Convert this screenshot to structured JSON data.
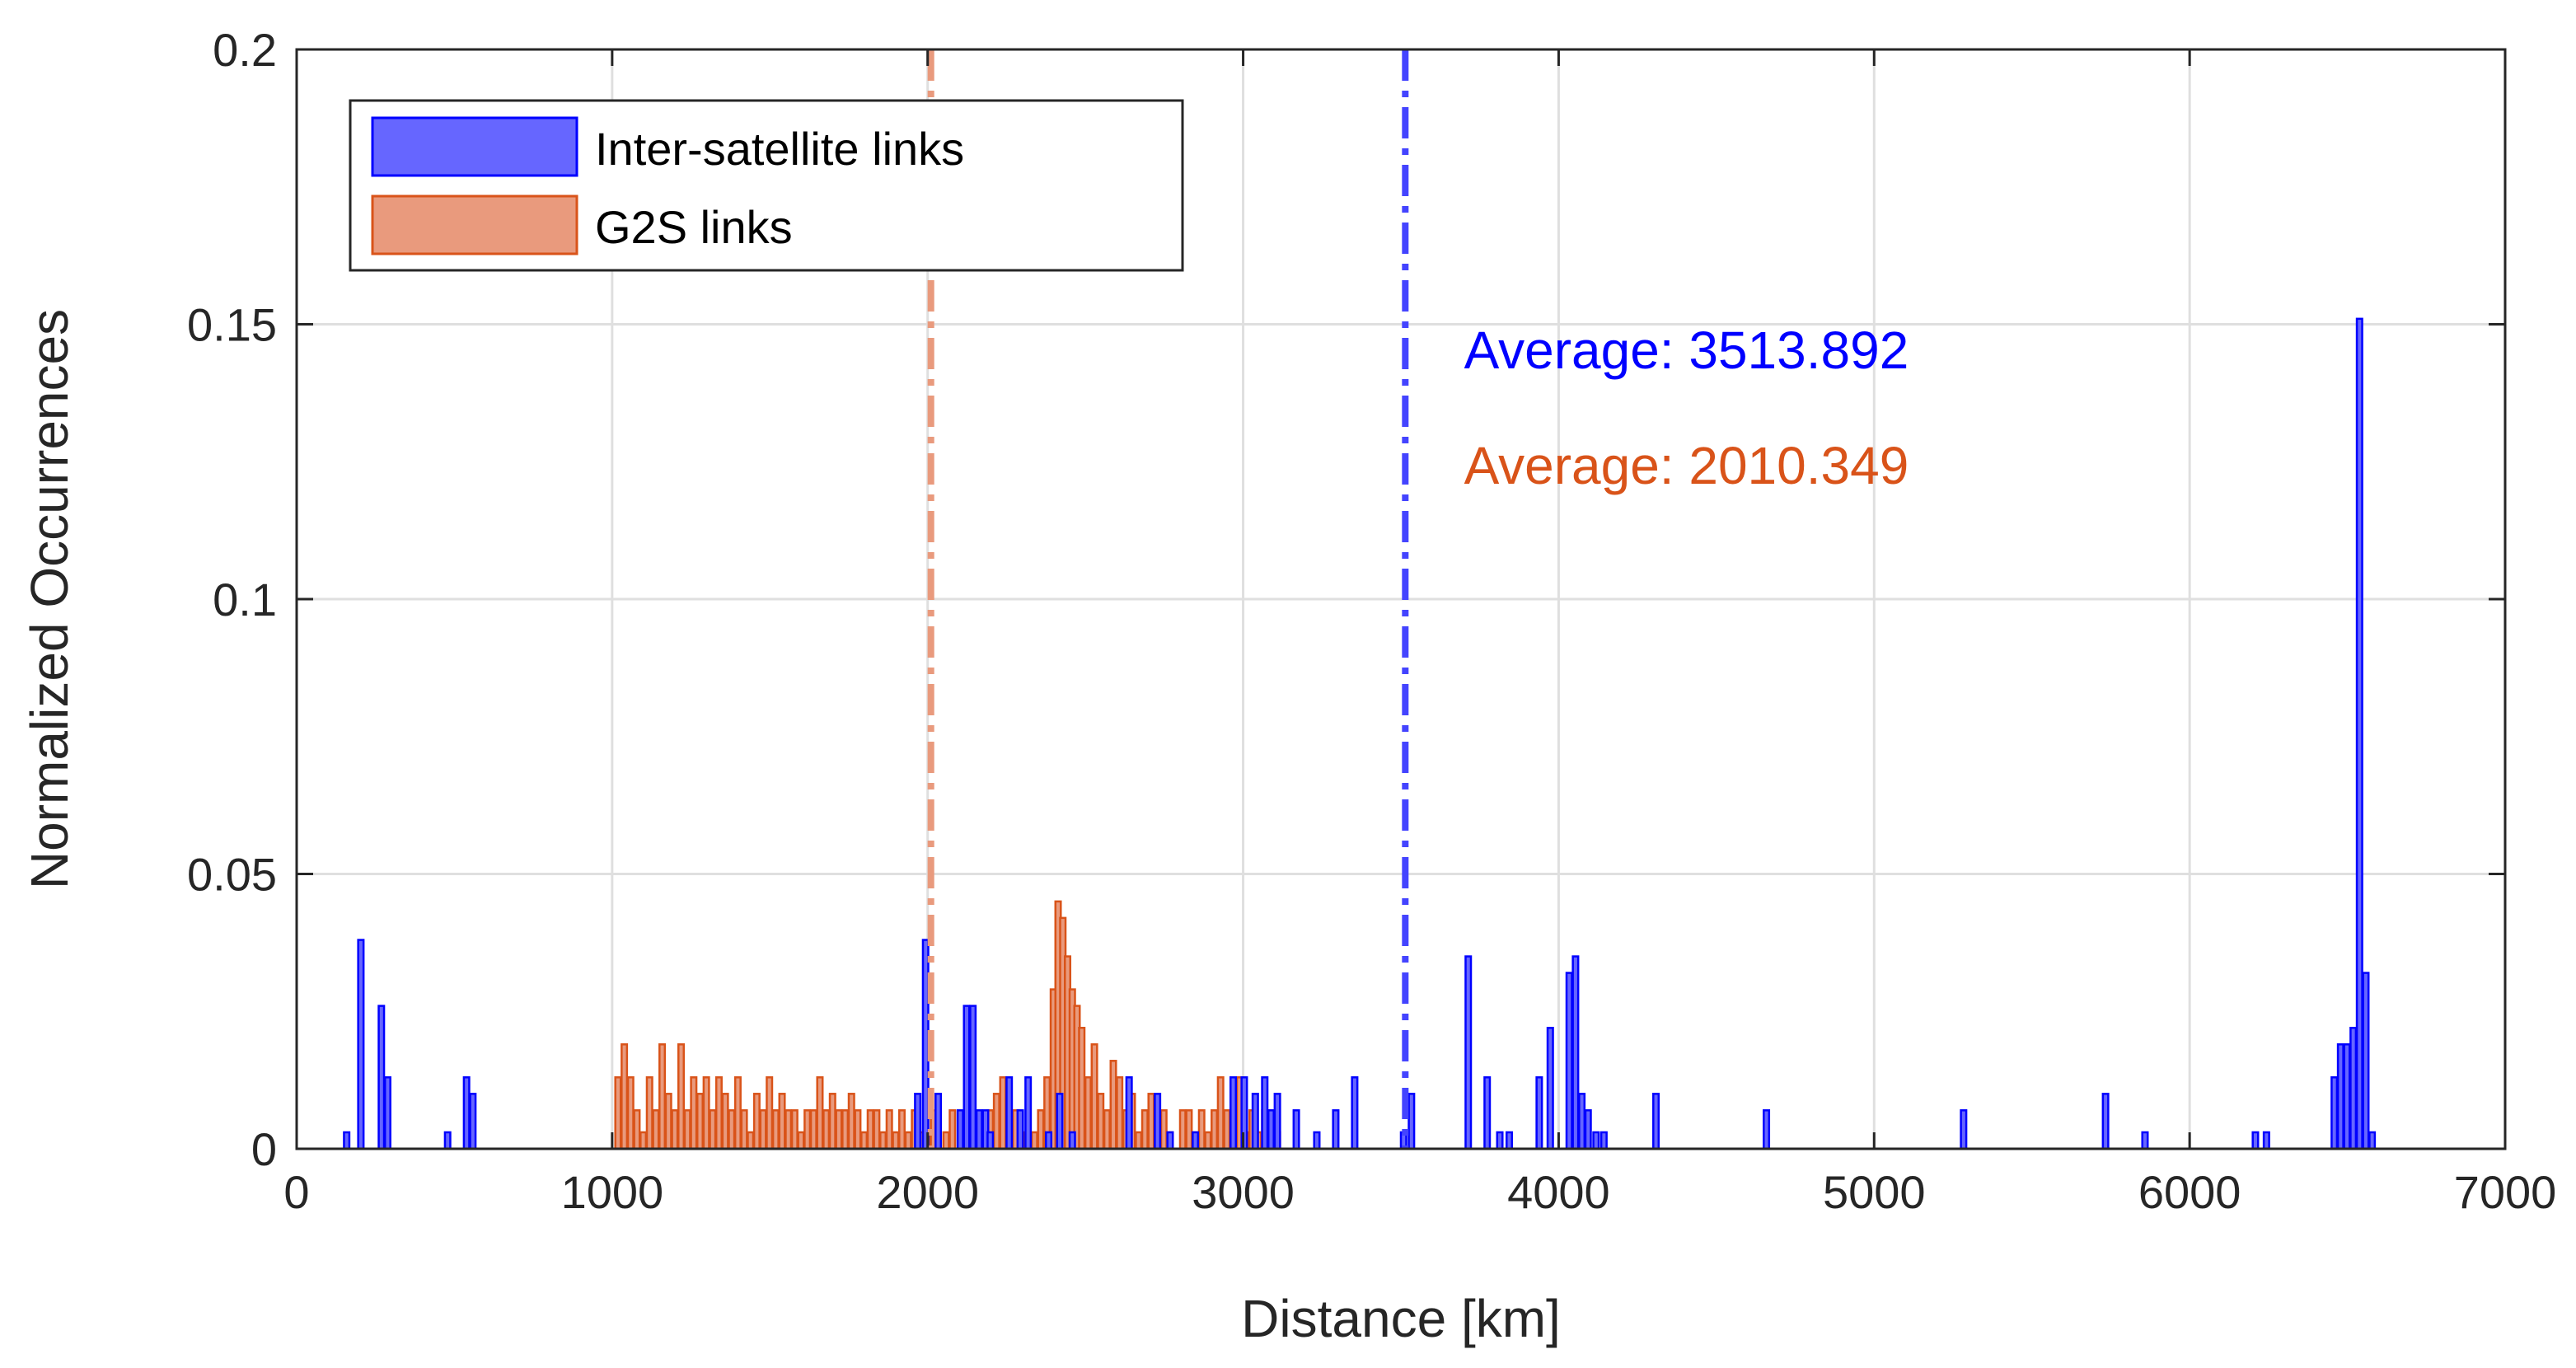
{
  "chart_data": {
    "type": "bar",
    "title": "",
    "xlabel": "Distance [km]",
    "ylabel": "Normalized Occurrences",
    "xlim": [
      0,
      7000
    ],
    "ylim": [
      0,
      0.2
    ],
    "x_ticks": [
      0,
      1000,
      2000,
      3000,
      4000,
      5000,
      6000,
      7000
    ],
    "x_tick_labels": [
      "0",
      "1000",
      "2000",
      "3000",
      "4000",
      "5000",
      "6000",
      "7000"
    ],
    "y_ticks": [
      0,
      0.05,
      0.1,
      0.15,
      0.2
    ],
    "y_tick_labels": [
      "0",
      "0.05",
      "0.1",
      "0.15",
      "0.2"
    ],
    "grid": true,
    "legend_position": "top-left",
    "bin_width_km": 17,
    "series": [
      {
        "name": "Inter-satellite links",
        "color": "#0000ff",
        "fill": "#6666ff",
        "bins": [
          [
            150,
            0.003
          ],
          [
            195,
            0.038
          ],
          [
            260,
            0.026
          ],
          [
            280,
            0.013
          ],
          [
            470,
            0.003
          ],
          [
            530,
            0.013
          ],
          [
            550,
            0.01
          ],
          [
            1960,
            0.01
          ],
          [
            1985,
            0.038
          ],
          [
            2025,
            0.01
          ],
          [
            2095,
            0.007
          ],
          [
            2115,
            0.026
          ],
          [
            2135,
            0.026
          ],
          [
            2155,
            0.007
          ],
          [
            2175,
            0.007
          ],
          [
            2190,
            0.003
          ],
          [
            2250,
            0.013
          ],
          [
            2285,
            0.007
          ],
          [
            2310,
            0.013
          ],
          [
            2375,
            0.003
          ],
          [
            2410,
            0.01
          ],
          [
            2450,
            0.003
          ],
          [
            2630,
            0.013
          ],
          [
            2720,
            0.01
          ],
          [
            2760,
            0.003
          ],
          [
            2840,
            0.003
          ],
          [
            2960,
            0.013
          ],
          [
            2995,
            0.013
          ],
          [
            3030,
            0.01
          ],
          [
            3060,
            0.013
          ],
          [
            3080,
            0.007
          ],
          [
            3100,
            0.01
          ],
          [
            3160,
            0.007
          ],
          [
            3225,
            0.003
          ],
          [
            3285,
            0.007
          ],
          [
            3345,
            0.013
          ],
          [
            3500,
            0.003
          ],
          [
            3525,
            0.01
          ],
          [
            3705,
            0.035
          ],
          [
            3765,
            0.013
          ],
          [
            3805,
            0.003
          ],
          [
            3835,
            0.003
          ],
          [
            3930,
            0.013
          ],
          [
            3965,
            0.022
          ],
          [
            4025,
            0.032
          ],
          [
            4045,
            0.035
          ],
          [
            4065,
            0.01
          ],
          [
            4085,
            0.007
          ],
          [
            4110,
            0.003
          ],
          [
            4135,
            0.003
          ],
          [
            4300,
            0.01
          ],
          [
            4650,
            0.007
          ],
          [
            5275,
            0.007
          ],
          [
            5725,
            0.01
          ],
          [
            5850,
            0.003
          ],
          [
            6200,
            0.003
          ],
          [
            6235,
            0.003
          ],
          [
            6450,
            0.013
          ],
          [
            6470,
            0.019
          ],
          [
            6490,
            0.019
          ],
          [
            6510,
            0.022
          ],
          [
            6530,
            0.151
          ],
          [
            6550,
            0.032
          ],
          [
            6570,
            0.003
          ]
        ]
      },
      {
        "name": "G2S links",
        "color": "#d95319",
        "fill": "#e99a7d",
        "bins": [
          [
            1010,
            0.013
          ],
          [
            1030,
            0.019
          ],
          [
            1050,
            0.013
          ],
          [
            1070,
            0.007
          ],
          [
            1090,
            0.003
          ],
          [
            1110,
            0.013
          ],
          [
            1130,
            0.007
          ],
          [
            1150,
            0.019
          ],
          [
            1170,
            0.01
          ],
          [
            1190,
            0.007
          ],
          [
            1210,
            0.019
          ],
          [
            1230,
            0.007
          ],
          [
            1250,
            0.013
          ],
          [
            1270,
            0.01
          ],
          [
            1290,
            0.013
          ],
          [
            1310,
            0.007
          ],
          [
            1330,
            0.013
          ],
          [
            1350,
            0.01
          ],
          [
            1370,
            0.007
          ],
          [
            1390,
            0.013
          ],
          [
            1410,
            0.007
          ],
          [
            1430,
            0.003
          ],
          [
            1450,
            0.01
          ],
          [
            1470,
            0.007
          ],
          [
            1490,
            0.013
          ],
          [
            1510,
            0.007
          ],
          [
            1530,
            0.01
          ],
          [
            1550,
            0.007
          ],
          [
            1570,
            0.007
          ],
          [
            1590,
            0.003
          ],
          [
            1610,
            0.007
          ],
          [
            1630,
            0.007
          ],
          [
            1650,
            0.013
          ],
          [
            1670,
            0.007
          ],
          [
            1690,
            0.01
          ],
          [
            1710,
            0.007
          ],
          [
            1730,
            0.007
          ],
          [
            1750,
            0.01
          ],
          [
            1770,
            0.007
          ],
          [
            1790,
            0.003
          ],
          [
            1810,
            0.007
          ],
          [
            1830,
            0.007
          ],
          [
            1850,
            0.003
          ],
          [
            1870,
            0.007
          ],
          [
            1890,
            0.003
          ],
          [
            1910,
            0.007
          ],
          [
            1930,
            0.003
          ],
          [
            1950,
            0.007
          ],
          [
            1970,
            0.003
          ],
          [
            1990,
            0.003
          ],
          [
            2010,
            0.007
          ],
          [
            2050,
            0.003
          ],
          [
            2070,
            0.007
          ],
          [
            2110,
            0.003
          ],
          [
            2130,
            0.007
          ],
          [
            2150,
            0.003
          ],
          [
            2190,
            0.007
          ],
          [
            2210,
            0.01
          ],
          [
            2230,
            0.013
          ],
          [
            2250,
            0.003
          ],
          [
            2270,
            0.007
          ],
          [
            2290,
            0.003
          ],
          [
            2330,
            0.003
          ],
          [
            2350,
            0.007
          ],
          [
            2370,
            0.013
          ],
          [
            2390,
            0.029
          ],
          [
            2405,
            0.045
          ],
          [
            2420,
            0.042
          ],
          [
            2435,
            0.035
          ],
          [
            2450,
            0.029
          ],
          [
            2465,
            0.026
          ],
          [
            2480,
            0.022
          ],
          [
            2500,
            0.013
          ],
          [
            2520,
            0.019
          ],
          [
            2540,
            0.01
          ],
          [
            2560,
            0.007
          ],
          [
            2580,
            0.016
          ],
          [
            2600,
            0.013
          ],
          [
            2620,
            0.007
          ],
          [
            2640,
            0.01
          ],
          [
            2660,
            0.003
          ],
          [
            2680,
            0.007
          ],
          [
            2700,
            0.01
          ],
          [
            2720,
            0.007
          ],
          [
            2740,
            0.007
          ],
          [
            2760,
            0.003
          ],
          [
            2800,
            0.007
          ],
          [
            2820,
            0.007
          ],
          [
            2840,
            0.003
          ],
          [
            2860,
            0.007
          ],
          [
            2880,
            0.003
          ],
          [
            2900,
            0.007
          ],
          [
            2920,
            0.013
          ],
          [
            2940,
            0.007
          ],
          [
            2960,
            0.003
          ],
          [
            2980,
            0.013
          ],
          [
            3000,
            0.003
          ],
          [
            3020,
            0.007
          ],
          [
            3040,
            0.003
          ],
          [
            3060,
            0.007
          ],
          [
            3080,
            0.007
          ],
          [
            3100,
            0.003
          ]
        ]
      }
    ],
    "reference_lines": [
      {
        "series": "G2S links",
        "x": 2010.349,
        "style": "dash-dot",
        "color": "#e99a7d"
      },
      {
        "series": "Inter-satellite links",
        "x": 3513.892,
        "style": "dash-dot",
        "color": "#4444ff"
      }
    ],
    "annotations": [
      {
        "text": "Average: 3513.892",
        "color": "#0000ff",
        "x": 3700,
        "y": 0.145
      },
      {
        "text": "Average: 2010.349",
        "color": "#d95319",
        "x": 3700,
        "y": 0.124
      }
    ]
  }
}
